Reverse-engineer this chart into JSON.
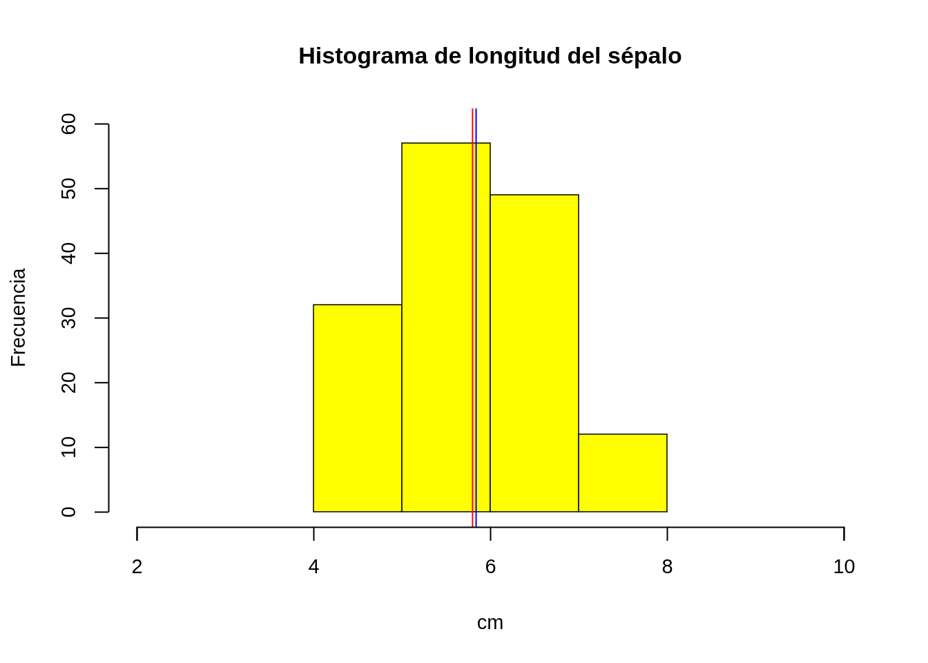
{
  "chart_data": {
    "type": "histogram",
    "title": "Histograma de longitud del sépalo",
    "xlabel": "cm",
    "ylabel": "Frecuencia",
    "bins": [
      4,
      5,
      6,
      7,
      8
    ],
    "values": [
      32,
      57,
      49,
      12
    ],
    "color": "#ffff00",
    "xlim": [
      2,
      10
    ],
    "xticks": [
      2,
      4,
      6,
      8,
      10
    ],
    "ylim": [
      0,
      60
    ],
    "yticks": [
      0,
      10,
      20,
      30,
      40,
      50,
      60
    ],
    "ref_lines": [
      {
        "axis": "x",
        "value": 5.8,
        "color": "#ff0000"
      },
      {
        "axis": "x",
        "value": 5.84,
        "color": "#0000ff"
      }
    ],
    "grid": false
  }
}
